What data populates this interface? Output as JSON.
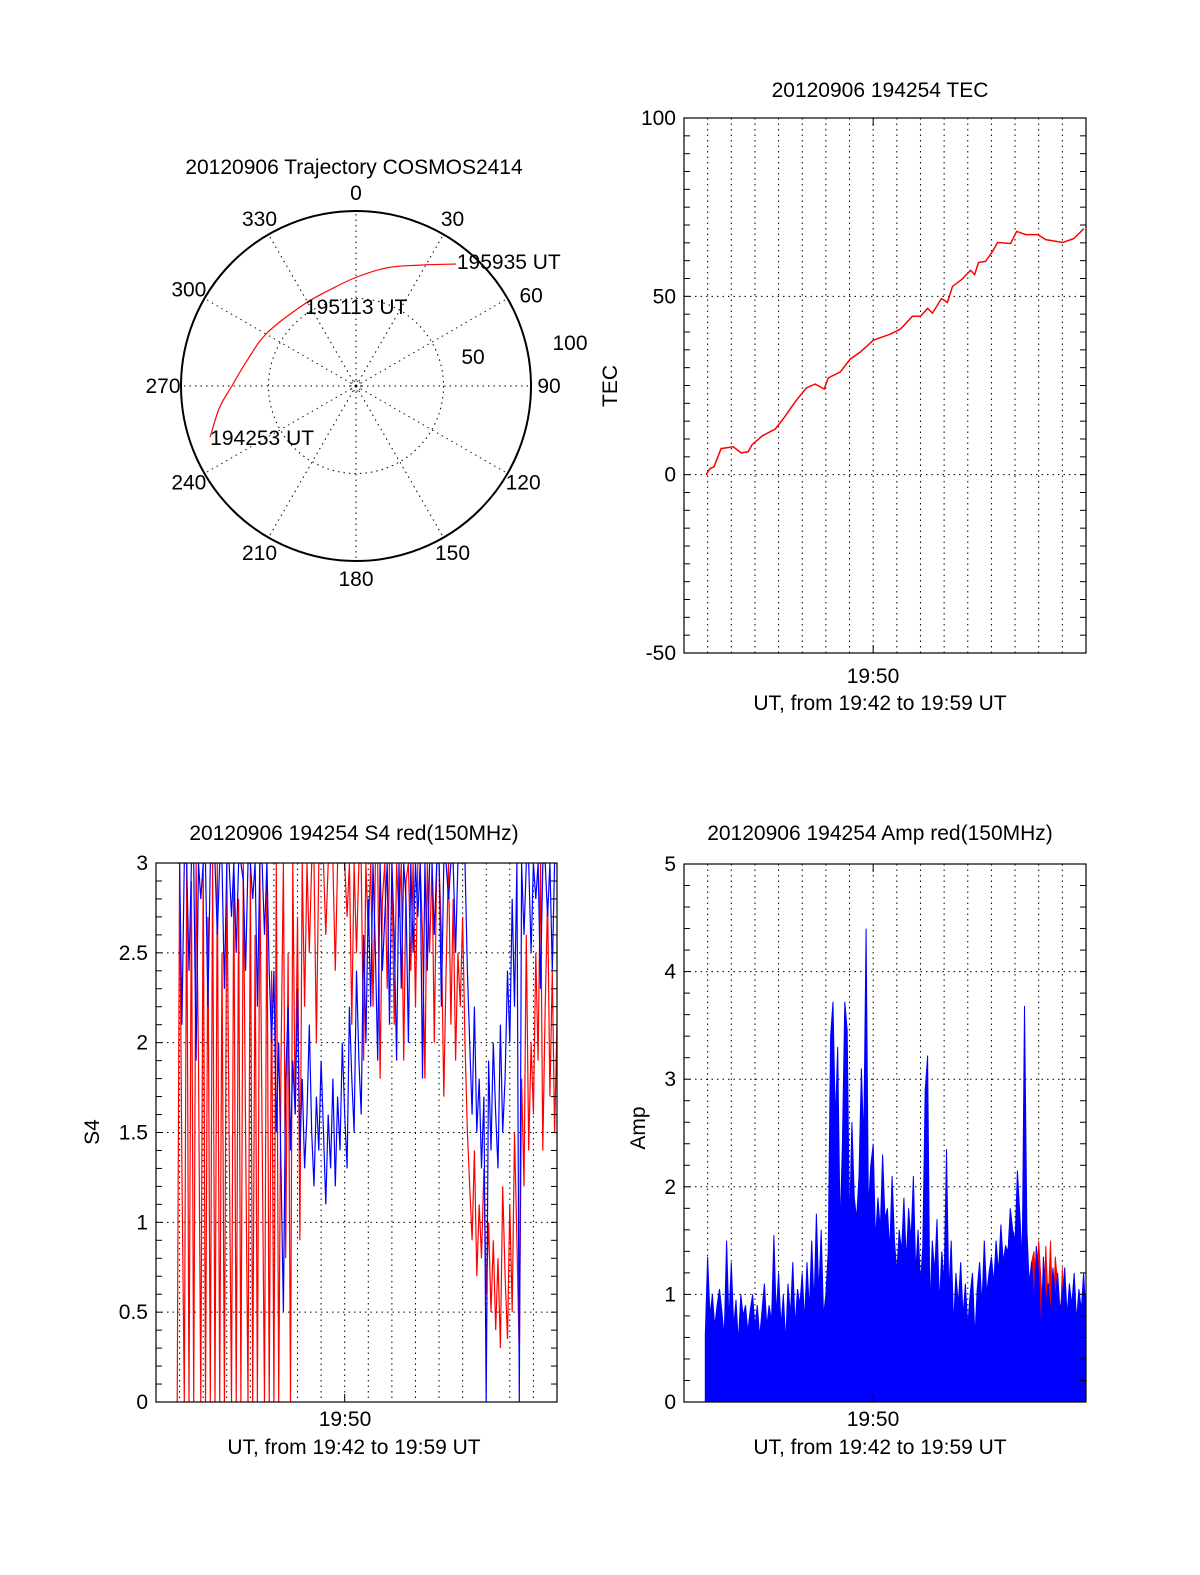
{
  "chart_data": [
    {
      "type": "polar",
      "title": "20120906 Trajectory COSMOS2414",
      "azimuth_ticks": [
        "0",
        "30",
        "60",
        "90",
        "120",
        "150",
        "180",
        "210",
        "240",
        "270",
        "300",
        "330"
      ],
      "radius_ticks": [
        "50",
        "100"
      ],
      "radius_range": [
        0,
        100
      ],
      "series": [
        {
          "name": "trajectory",
          "color": "#ff0000",
          "points": [
            [
              250.7,
              88.3
            ],
            [
              261,
              79
            ],
            [
              270,
              70.9
            ],
            [
              283,
              64
            ],
            [
              300.8,
              59.2
            ],
            [
              326.8,
              55.3
            ],
            [
              345,
              57
            ],
            [
              0.5,
              62.3
            ],
            [
              15,
              70
            ],
            [
              27.9,
              78.2
            ],
            [
              39.3,
              90.1
            ]
          ]
        }
      ],
      "annotations": [
        {
          "text": "194253 UT",
          "at": "start"
        },
        {
          "text": "195113 UT",
          "at": "middle"
        },
        {
          "text": "195935 UT",
          "at": "end"
        }
      ]
    },
    {
      "type": "line",
      "title": "20120906 194254 TEC",
      "xlabel": "UT, from 19:42 to 19:59 UT",
      "ylabel": "TEC",
      "x_unit": "minutes after 19:42 UT",
      "xlim": [
        0,
        17
      ],
      "ylim": [
        -50,
        100
      ],
      "yticks": [
        "-50",
        "0",
        "50",
        "100"
      ],
      "xticks": [
        {
          "label": "19:50",
          "value": 8
        }
      ],
      "grid": true,
      "series": [
        {
          "name": "TEC",
          "color": "#ff0000",
          "points": [
            [
              0.93,
              0
            ],
            [
              1.1,
              1.7
            ],
            [
              1.27,
              2.2
            ],
            [
              1.57,
              7.3
            ],
            [
              2.08,
              7.8
            ],
            [
              2.42,
              6.1
            ],
            [
              2.71,
              6.4
            ],
            [
              2.88,
              8.4
            ],
            [
              3.31,
              10.9
            ],
            [
              3.86,
              12.8
            ],
            [
              4.19,
              15.6
            ],
            [
              4.7,
              20.4
            ],
            [
              5.17,
              24.3
            ],
            [
              5.55,
              25.4
            ],
            [
              5.93,
              24.0
            ],
            [
              6.1,
              27.1
            ],
            [
              6.61,
              28.8
            ],
            [
              7.03,
              32.4
            ],
            [
              7.46,
              34.4
            ],
            [
              8.01,
              37.7
            ],
            [
              8.73,
              39.4
            ],
            [
              9.15,
              40.8
            ],
            [
              9.66,
              44.4
            ],
            [
              10.0,
              44.4
            ],
            [
              10.3,
              46.6
            ],
            [
              10.51,
              45.3
            ],
            [
              10.89,
              49.4
            ],
            [
              11.14,
              48.3
            ],
            [
              11.36,
              52.8
            ],
            [
              11.74,
              54.7
            ],
            [
              12.12,
              57.3
            ],
            [
              12.29,
              56.1
            ],
            [
              12.46,
              59.5
            ],
            [
              12.75,
              59.8
            ],
            [
              13.05,
              62.6
            ],
            [
              13.26,
              65.1
            ],
            [
              13.81,
              64.8
            ],
            [
              14.07,
              68.2
            ],
            [
              14.45,
              67.3
            ],
            [
              14.96,
              67.3
            ],
            [
              15.3,
              65.9
            ],
            [
              16.02,
              65.1
            ],
            [
              16.48,
              66.2
            ],
            [
              16.91,
              69.0
            ]
          ]
        }
      ]
    },
    {
      "type": "line",
      "title": "20120906 194254 S4 red(150MHz)",
      "xlabel": "UT, from 19:42 to 19:59 UT",
      "ylabel": "S4",
      "x_unit": "minutes after 19:42 UT",
      "xlim": [
        0,
        17
      ],
      "ylim": [
        0,
        3
      ],
      "yticks": [
        "0",
        "0.5",
        "1",
        "1.5",
        "2",
        "2.5",
        "3"
      ],
      "xticks": [
        {
          "label": "19:50",
          "value": 8
        }
      ],
      "grid": true,
      "t_start": 0.9,
      "t_step": 0.1,
      "series": [
        {
          "name": "S4 red",
          "color": "#ff0000",
          "values": [
            0,
            3,
            1.3,
            0,
            3,
            0,
            2.9,
            0,
            3,
            1.9,
            0,
            3,
            0,
            2.7,
            0,
            3,
            0,
            3,
            0,
            2.5,
            0,
            3,
            1.5,
            0,
            3,
            0,
            2.8,
            0,
            3,
            1.5,
            0,
            3,
            0,
            2.6,
            0,
            3,
            1.5,
            0,
            3,
            0,
            2.4,
            0,
            3,
            0,
            1.9,
            3,
            0.8,
            2.5,
            0,
            3,
            1.6,
            2.7,
            0.9,
            3,
            2.2,
            3,
            2.5,
            3,
            3,
            2.0,
            3,
            3,
            3,
            2.6,
            3,
            3,
            3,
            2.4,
            3,
            3,
            3,
            3,
            2.7,
            3,
            2.1,
            3,
            2.5,
            3,
            3,
            1.9,
            3,
            2.6,
            3,
            2.2,
            3,
            3,
            1.8,
            2.8,
            3,
            2.3,
            3,
            3,
            2.1,
            3,
            2.7,
            3,
            1.9,
            2.9,
            3,
            2.4,
            3,
            2.2,
            3,
            3,
            2.6,
            1.8,
            3,
            2.5,
            3,
            2.0,
            3,
            3,
            2.6,
            1.7,
            2.4,
            3,
            2.1,
            2.8,
            1.9,
            2.5,
            2.2,
            2.7,
            2.0,
            1.5,
            1.2,
            0.9,
            1.4,
            0.7,
            1.1,
            0.8,
            1.3,
            0.6,
            1.0,
            0.5,
            0.9,
            0.4,
            0.8,
            0.3,
            1.2,
            0.7,
            0.35,
            1.1,
            0.5,
            1.5,
            0.9,
            0.25,
            1.8,
            1.2,
            2.6,
            1.4,
            2.0,
            1.6,
            2.5,
            1.9,
            3,
            1.4,
            2.2,
            2.8,
            1.7,
            2.4,
            1.5,
            2.1
          ]
        },
        {
          "name": "S4 blue",
          "color": "#0000ff",
          "values": [
            3,
            3,
            2.1,
            3,
            3,
            2.4,
            3,
            3,
            1.9,
            3,
            2.8,
            3,
            3,
            2.2,
            3,
            3,
            3,
            2.6,
            3,
            3,
            2.3,
            3,
            3,
            2.7,
            3,
            2.5,
            3,
            3,
            2.9,
            2.4,
            3,
            3,
            2.8,
            3,
            2.2,
            3,
            3,
            2.6,
            3,
            2.4,
            2.0,
            2.4,
            1.5,
            2.0,
            1.3,
            0.5,
            1.8,
            2.2,
            1.4,
            1.9,
            1.6,
            2.3,
            1.4,
            1.8,
            1.3,
            1.6,
            2.1,
            1.5,
            1.2,
            1.7,
            1.4,
            1.9,
            1.5,
            1.1,
            1.6,
            1.3,
            1.8,
            1.2,
            1.7,
            1.4,
            2.0,
            1.6,
            1.3,
            2.2,
            1.8,
            1.5,
            2.4,
            1.9,
            1.6,
            2.6,
            2.0,
            2.8,
            2.2,
            3,
            2.5,
            1.9,
            3,
            2.4,
            2.7,
            3,
            2.1,
            3,
            2.6,
            1.9,
            3,
            2.3,
            3,
            2.8,
            2.0,
            3,
            2.5,
            3,
            2.7,
            3,
            1.8,
            3,
            2.4,
            3,
            3,
            2.6,
            3,
            3,
            2.2,
            3,
            3,
            2.8,
            3,
            3,
            2.5,
            3,
            3,
            3,
            3,
            2.4,
            2.0,
            1.6,
            2.2,
            1.5,
            1.8,
            1.3,
            1.7,
            0,
            1.9,
            1.4,
            2.0,
            1.6,
            1.3,
            2.1,
            1.5,
            1.8,
            2.4,
            2.0,
            2.8,
            2.2,
            3,
            0,
            3,
            2.6,
            3,
            3,
            2.5,
            3,
            2.8,
            3,
            2.3,
            3,
            3,
            2.7,
            3,
            2.4,
            3,
            3
          ]
        }
      ]
    },
    {
      "type": "area",
      "title": "20120906 194254 Amp red(150MHz)",
      "xlabel": "UT, from 19:42 to 19:59 UT",
      "ylabel": "Amp",
      "x_unit": "minutes after 19:42 UT",
      "xlim": [
        0,
        17
      ],
      "ylim": [
        0,
        5
      ],
      "yticks": [
        "0",
        "1",
        "2",
        "3",
        "4",
        "5"
      ],
      "xticks": [
        {
          "label": "19:50",
          "value": 8
        }
      ],
      "grid": true,
      "series": [
        {
          "name": "Amp red",
          "color": "#ff0000",
          "t_start": 14.7,
          "t_step": 0.1,
          "values": [
            1.3,
            1.4,
            0.95,
            1.5,
            1.1,
            0.75,
            1.45,
            0.9,
            1.5,
            0.7,
            1.35,
            1.1,
            0.65,
            1.25
          ]
        },
        {
          "name": "Amp blue",
          "color": "#0000ff",
          "t_start": 0.9,
          "t_step": 0.1,
          "values": [
            0.62,
            1.35,
            0.8,
            1.0,
            0.7,
            0.9,
            1.05,
            0.85,
            0.6,
            1.5,
            0.75,
            1.3,
            0.7,
            0.95,
            0.55,
            1.0,
            0.8,
            0.9,
            0.65,
            0.85,
            1.0,
            0.7,
            0.9,
            0.6,
            0.85,
            1.1,
            0.7,
            0.9,
            0.75,
            1.55,
            0.8,
            1.2,
            0.7,
            1.0,
            0.55,
            1.1,
            0.8,
            1.3,
            0.7,
            1.05,
            0.9,
            1.2,
            0.75,
            1.3,
            0.85,
            1.5,
            0.9,
            1.75,
            1.0,
            1.6,
            0.8,
            1.0,
            1.4,
            3.4,
            3.72,
            2.6,
            3.3,
            1.6,
            2.4,
            3.72,
            3.45,
            1.6,
            2.6,
            1.9,
            1.7,
            2.1,
            3.1,
            2.4,
            4.4,
            1.8,
            2.2,
            2.4,
            1.5,
            1.9,
            1.6,
            2.3,
            1.7,
            1.8,
            1.4,
            2.1,
            1.5,
            1.2,
            1.6,
            1.4,
            1.9,
            1.3,
            1.8,
            1.5,
            2.1,
            1.2,
            1.6,
            1.1,
            1.45,
            2.9,
            3.22,
            0.85,
            1.5,
            1.2,
            1.7,
            0.9,
            1.4,
            1.1,
            2.35,
            1.0,
            1.5,
            0.7,
            1.2,
            0.9,
            1.3,
            0.8,
            1.1,
            0.7,
            1.0,
            1.2,
            0.6,
            1.05,
            1.3,
            0.9,
            1.5,
            1.0,
            1.2,
            1.35,
            1.1,
            1.5,
            1.2,
            1.65,
            1.3,
            1.45,
            1.4,
            1.8,
            1.6,
            1.5,
            2.15,
            1.75,
            1.3,
            3.68,
            1.6,
            1.1,
            1.3,
            0.9,
            1.45,
            1.2,
            0.6,
            1.35,
            0.9,
            1.1,
            0.8,
            1.25,
            0.95,
            1.2,
            0.85,
            1.0,
            1.25,
            0.8,
            1.1,
            0.9,
            1.2,
            0.75,
            1.05,
            0.85,
            1.2,
            0.8
          ]
        }
      ]
    }
  ]
}
